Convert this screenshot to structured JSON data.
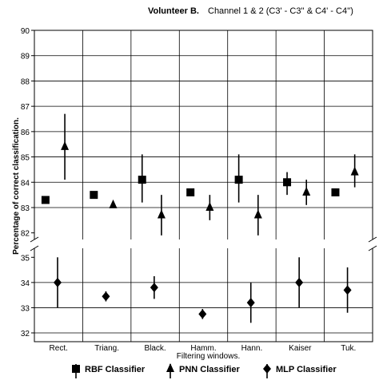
{
  "header": {
    "bold": "Volunteer B.",
    "rest": "Channel 1 & 2 (C3' - C3'' & C4' - C4'')"
  },
  "chart_data": {
    "type": "scatter",
    "title": "Volunteer B.   Channel 1 & 2 (C3' - C3'' & C4' - C4'')",
    "xlabel": "Filtering windows.",
    "ylabel": "Percentage of correct classification.",
    "categories": [
      "Rect.",
      "Triang.",
      "Black.",
      "Hamm.",
      "Hann.",
      "Kaiser",
      "Tuk."
    ],
    "axis_break": "broken y-axis between 35 and 82",
    "upper_yticks": [
      82,
      83,
      84,
      85,
      86,
      87,
      88,
      89,
      90
    ],
    "lower_yticks": [
      32,
      33,
      34,
      35
    ],
    "series": [
      {
        "name": "RBF Classifier",
        "marker": "square",
        "values": [
          83.3,
          83.5,
          84.1,
          83.6,
          84.1,
          84.0,
          83.6
        ],
        "err_low": [
          null,
          null,
          83.2,
          null,
          83.2,
          83.5,
          null
        ],
        "err_high": [
          null,
          null,
          85.1,
          null,
          85.1,
          84.4,
          null
        ]
      },
      {
        "name": "PNN Classifier",
        "marker": "triangle",
        "values": [
          85.4,
          83.1,
          82.7,
          83.0,
          82.7,
          83.6,
          84.4
        ],
        "err_low": [
          84.1,
          null,
          81.9,
          82.5,
          81.9,
          83.1,
          83.8
        ],
        "err_high": [
          86.7,
          null,
          83.5,
          83.5,
          83.5,
          84.1,
          85.1
        ]
      },
      {
        "name": "MLP Classifier",
        "marker": "diamond",
        "values": [
          34.0,
          33.45,
          33.8,
          32.75,
          33.2,
          34.0,
          33.7
        ],
        "err_low": [
          33.0,
          33.25,
          33.35,
          32.55,
          32.4,
          33.0,
          32.8
        ],
        "err_high": [
          35.0,
          33.65,
          34.25,
          32.95,
          34.0,
          35.0,
          34.6
        ]
      }
    ],
    "grid": "horizontal lines and vertical category separators",
    "legend_position": "bottom"
  }
}
